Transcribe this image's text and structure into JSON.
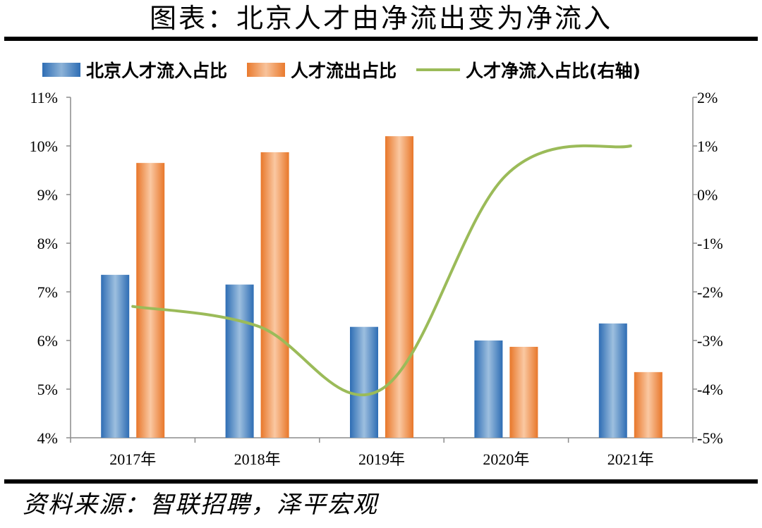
{
  "page": {
    "title": "图表：北京人才由净流出变为净流入",
    "source": "资料来源：智联招聘，泽平宏观"
  },
  "colors": {
    "bar1": "#4F81BD",
    "bar2": "#F79646",
    "line": "#9BBB59"
  },
  "chart_data": {
    "type": "bar",
    "categories": [
      "2017年",
      "2018年",
      "2019年",
      "2020年",
      "2021年"
    ],
    "series": [
      {
        "name": "北京人才流入占比",
        "type": "bar",
        "axis": "left",
        "values": [
          7.35,
          7.15,
          6.28,
          6.0,
          6.35
        ]
      },
      {
        "name": "人才流出占比",
        "type": "bar",
        "axis": "left",
        "values": [
          9.65,
          9.87,
          10.2,
          5.87,
          5.35
        ]
      },
      {
        "name": "人才净流入占比(右轴)",
        "type": "line",
        "axis": "right",
        "values": [
          -2.3,
          -2.7,
          -4.0,
          0.4,
          1.0
        ]
      }
    ],
    "y_left": {
      "min": 4,
      "max": 11,
      "step": 1,
      "format": "percent",
      "tick_labels": [
        "4%",
        "5%",
        "6%",
        "7%",
        "8%",
        "9%",
        "10%",
        "11%"
      ]
    },
    "y_right": {
      "min": -5,
      "max": 2,
      "step": 1,
      "format": "percent",
      "tick_labels": [
        "-5%",
        "-4%",
        "-3%",
        "-2%",
        "-1%",
        "0%",
        "1%",
        "2%"
      ]
    },
    "legend_position": "top",
    "grid": false
  }
}
